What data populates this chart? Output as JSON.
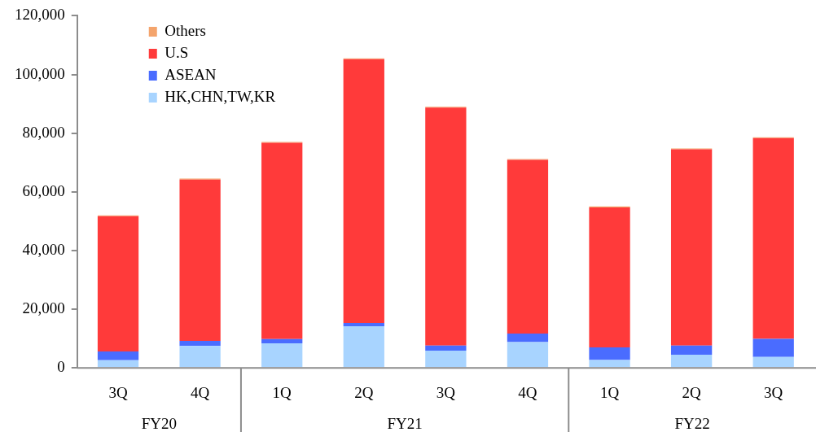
{
  "chart_data": {
    "type": "bar",
    "stacked": true,
    "categories": [
      "3Q",
      "4Q",
      "1Q",
      "2Q",
      "3Q",
      "4Q",
      "1Q",
      "2Q",
      "3Q"
    ],
    "series": [
      {
        "name": "HK,CHN,TW,KR",
        "color": "#a8d4ff",
        "values": [
          2600,
          7500,
          8400,
          14200,
          5900,
          8800,
          2700,
          4500,
          3700
        ]
      },
      {
        "name": "ASEAN",
        "color": "#4a6cff",
        "values": [
          3000,
          1700,
          1400,
          1100,
          1700,
          2900,
          4300,
          3100,
          6200
        ]
      },
      {
        "name": "U.S",
        "color": "#ff3a3a",
        "values": [
          46100,
          55000,
          66900,
          89900,
          81100,
          59200,
          47700,
          66900,
          68400
        ]
      },
      {
        "name": "Others",
        "color": "#f4a46c",
        "values": [
          300,
          300,
          300,
          300,
          300,
          300,
          300,
          300,
          300
        ]
      }
    ],
    "ylim": [
      0,
      120000
    ],
    "yticks": [
      0,
      {
        "value": 20000,
        "label": "20,000"
      },
      {
        "value": 40000,
        "label": "40,000"
      },
      {
        "value": 60000,
        "label": "60,000"
      },
      {
        "value": 80000,
        "label": "80,000"
      },
      {
        "value": 100000,
        "label": "100,000"
      },
      {
        "value": 120000,
        "label": "120,000"
      }
    ],
    "grid": false,
    "legend": "top left",
    "annotations": [
      "FY20",
      "FY21",
      "FY22"
    ]
  }
}
